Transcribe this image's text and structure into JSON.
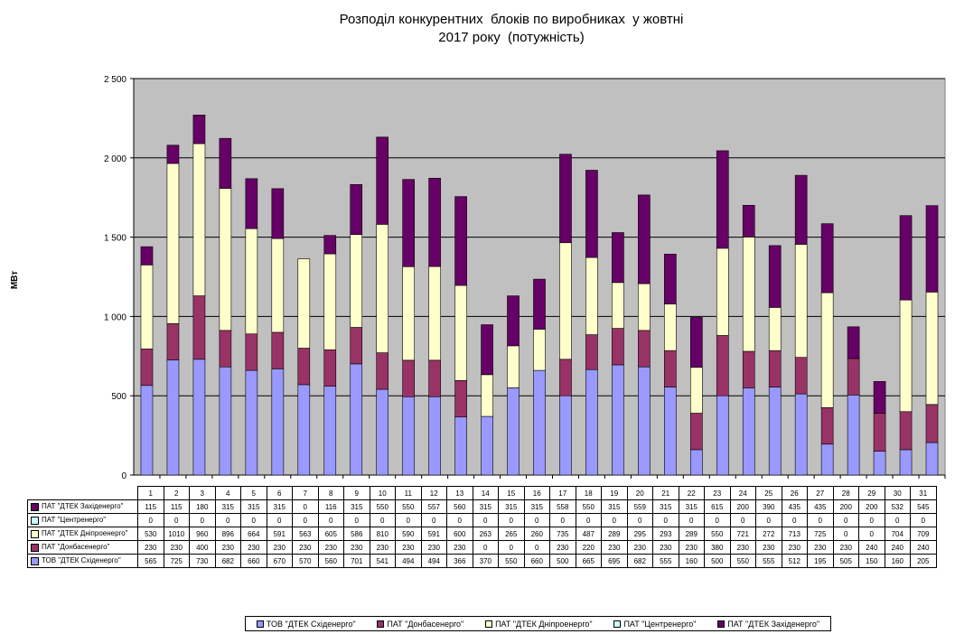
{
  "chart_data": {
    "type": "bar",
    "stacked": true,
    "title_lines": [
      "Розподіл конкурентних  блоків по виробниках  у жовтні",
      "2017 року  (потужність)"
    ],
    "ylabel": "МВт",
    "ylim": [
      0,
      2500
    ],
    "yticks": [
      0,
      500,
      1000,
      1500,
      2000,
      2500
    ],
    "ytick_labels": [
      "0",
      "500",
      "1 000",
      "1 500",
      "2 000",
      "2 500"
    ],
    "grid": true,
    "categories": [
      "1",
      "2",
      "3",
      "4",
      "5",
      "6",
      "7",
      "8",
      "9",
      "10",
      "11",
      "12",
      "13",
      "14",
      "15",
      "16",
      "17",
      "18",
      "19",
      "20",
      "21",
      "22",
      "23",
      "24",
      "25",
      "26",
      "27",
      "28",
      "29",
      "30",
      "31"
    ],
    "series": [
      {
        "name": "ТОВ \"ДТЕК Східенерго\"",
        "color": "#9999ff",
        "values": [
          565,
          725,
          730,
          682,
          660,
          670,
          570,
          560,
          701,
          541,
          494,
          494,
          366,
          370,
          550,
          660,
          500,
          665,
          695,
          682,
          555,
          160,
          500,
          550,
          555,
          512,
          195,
          505,
          150,
          160,
          205
        ]
      },
      {
        "name": "ПАТ \"Донбасенерго\"",
        "color": "#993366",
        "values": [
          230,
          230,
          400,
          230,
          230,
          230,
          230,
          230,
          230,
          230,
          230,
          230,
          230,
          0,
          0,
          0,
          230,
          220,
          230,
          230,
          230,
          230,
          380,
          230,
          230,
          230,
          230,
          230,
          240,
          240,
          240
        ]
      },
      {
        "name": "ПАТ \"ДТЕК Дніпроенерго\"",
        "color": "#ffffcc",
        "values": [
          530,
          1010,
          960,
          896,
          664,
          591,
          563,
          605,
          586,
          810,
          590,
          591,
          600,
          263,
          265,
          260,
          735,
          487,
          289,
          295,
          293,
          289,
          550,
          721,
          272,
          713,
          725,
          0,
          0,
          704,
          709
        ]
      },
      {
        "name": "ПАТ \"Центренерго\"",
        "color": "#ccffff",
        "values": [
          0,
          0,
          0,
          0,
          0,
          0,
          0,
          0,
          0,
          0,
          0,
          0,
          0,
          0,
          0,
          0,
          0,
          0,
          0,
          0,
          0,
          0,
          0,
          0,
          0,
          0,
          0,
          0,
          0,
          0,
          0
        ]
      },
      {
        "name": "ПАТ \"ДТЕК Західенерго\"",
        "color": "#660066",
        "values": [
          115,
          115,
          180,
          315,
          315,
          315,
          0,
          116,
          315,
          550,
          550,
          557,
          560,
          315,
          315,
          315,
          558,
          550,
          315,
          559,
          315,
          315,
          615,
          200,
          390,
          435,
          435,
          200,
          200,
          532,
          545
        ]
      }
    ],
    "legend_position": "bottom",
    "table_row_order": [
      4,
      3,
      2,
      1,
      0
    ]
  }
}
